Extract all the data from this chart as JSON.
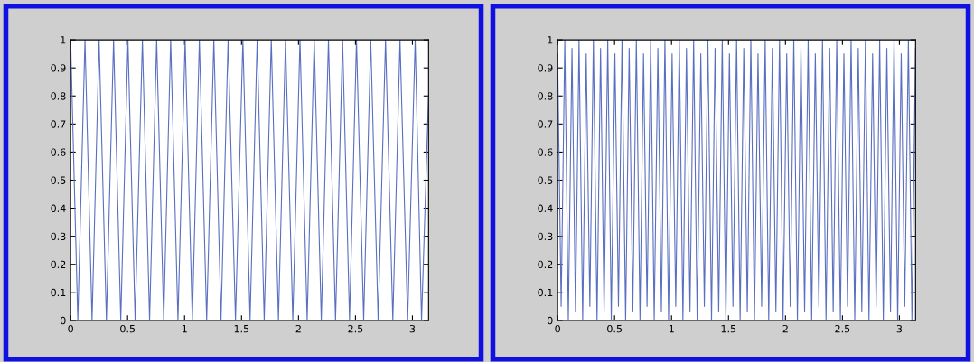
{
  "chart_data": [
    {
      "type": "line",
      "color": "#5a6fc0",
      "xlim": [
        0,
        3.1416
      ],
      "ylim": [
        0,
        1
      ],
      "xticks": [
        0,
        0.5,
        1,
        1.5,
        2,
        2.5,
        3
      ],
      "yticks": [
        0,
        0.1,
        0.2,
        0.3,
        0.4,
        0.5,
        0.6,
        0.7,
        0.8,
        0.9,
        1
      ],
      "grid": false,
      "x": [
        0,
        0.063,
        0.126,
        0.188,
        0.25,
        0.314,
        0.377,
        0.44,
        0.503,
        0.566,
        0.63,
        0.693,
        0.755,
        0.817,
        0.878,
        0.942,
        1.005,
        1.068,
        1.13,
        1.194,
        1.257,
        1.32,
        1.382,
        1.447,
        1.512,
        1.575,
        1.637,
        1.699,
        1.761,
        1.824,
        1.886,
        1.95,
        2.013,
        2.076,
        2.138,
        2.2,
        2.263,
        2.325,
        2.387,
        2.448,
        2.509,
        2.572,
        2.634,
        2.699,
        2.764,
        2.828,
        2.891,
        2.958,
        3.024,
        3.08,
        3.1416
      ],
      "values": [
        1,
        0,
        1,
        0,
        1,
        0,
        1,
        0,
        1,
        0,
        1,
        0,
        1,
        0,
        1,
        0,
        1,
        0,
        1,
        0,
        1,
        0,
        1,
        0,
        1,
        0,
        1,
        0,
        1,
        0,
        1,
        0,
        1,
        0,
        1,
        0,
        1,
        0,
        1,
        0,
        1,
        0,
        1,
        0,
        1,
        0,
        1,
        0,
        1,
        0,
        0.8
      ]
    },
    {
      "type": "line",
      "color": "#5a6fc0",
      "xlim": [
        0,
        3.142
      ],
      "ylim": [
        0,
        1
      ],
      "xticks": [
        0,
        0.5,
        1,
        1.5,
        2,
        2.5,
        3
      ],
      "yticks": [
        0,
        0.1,
        0.2,
        0.3,
        0.4,
        0.5,
        0.6,
        0.7,
        0.8,
        0.9,
        1
      ],
      "grid": false,
      "x": [
        0,
        0.031,
        0.063,
        0.094,
        0.126,
        0.157,
        0.188,
        0.22,
        0.251,
        0.283,
        0.314,
        0.346,
        0.377,
        0.408,
        0.44,
        0.471,
        0.503,
        0.534,
        0.565,
        0.597,
        0.628,
        0.66,
        0.691,
        0.723,
        0.754,
        0.785,
        0.817,
        0.848,
        0.88,
        0.911,
        0.942,
        0.974,
        1.005,
        1.037,
        1.068,
        1.1,
        1.131,
        1.162,
        1.194,
        1.225,
        1.257,
        1.288,
        1.319,
        1.351,
        1.382,
        1.414,
        1.445,
        1.477,
        1.508,
        1.539,
        1.571,
        1.602,
        1.634,
        1.665,
        1.696,
        1.728,
        1.759,
        1.791,
        1.822,
        1.853,
        1.885,
        1.916,
        1.948,
        1.979,
        2.011,
        2.042,
        2.073,
        2.105,
        2.136,
        2.168,
        2.199,
        2.23,
        2.262,
        2.293,
        2.325,
        2.356,
        2.388,
        2.419,
        2.45,
        2.482,
        2.513,
        2.545,
        2.576,
        2.608,
        2.639,
        2.67,
        2.702,
        2.733,
        2.765,
        2.796,
        2.827,
        2.859,
        2.89,
        2.922,
        2.953,
        2.985,
        3.016,
        3.047,
        3.079,
        3.11,
        3.142
      ],
      "values": [
        0.95,
        0.05,
        1,
        0,
        0.97,
        0.03,
        1,
        0,
        0.95,
        0.05,
        1,
        0,
        0.97,
        0.03,
        1,
        0,
        0.95,
        0.05,
        1,
        0,
        0.97,
        0.03,
        1,
        0,
        0.95,
        0.05,
        1,
        0,
        0.97,
        0.03,
        1,
        0,
        0.95,
        0.05,
        1,
        0,
        0.97,
        0.03,
        1,
        0,
        0.95,
        0.05,
        1,
        0,
        0.97,
        0.03,
        1,
        0,
        0.95,
        0.05,
        1,
        0,
        0.97,
        0.03,
        1,
        0,
        0.95,
        0.05,
        1,
        0,
        0.97,
        0.03,
        1,
        0,
        0.95,
        0.05,
        1,
        0,
        0.97,
        0.03,
        1,
        0,
        0.95,
        0.05,
        1,
        0,
        0.97,
        0.03,
        1,
        0,
        0.95,
        0.05,
        1,
        0,
        0.97,
        0.03,
        1,
        0,
        0.95,
        0.05,
        1,
        0,
        0.97,
        0.03,
        1,
        0,
        0.95,
        0.05,
        1,
        0,
        0.97
      ]
    }
  ]
}
